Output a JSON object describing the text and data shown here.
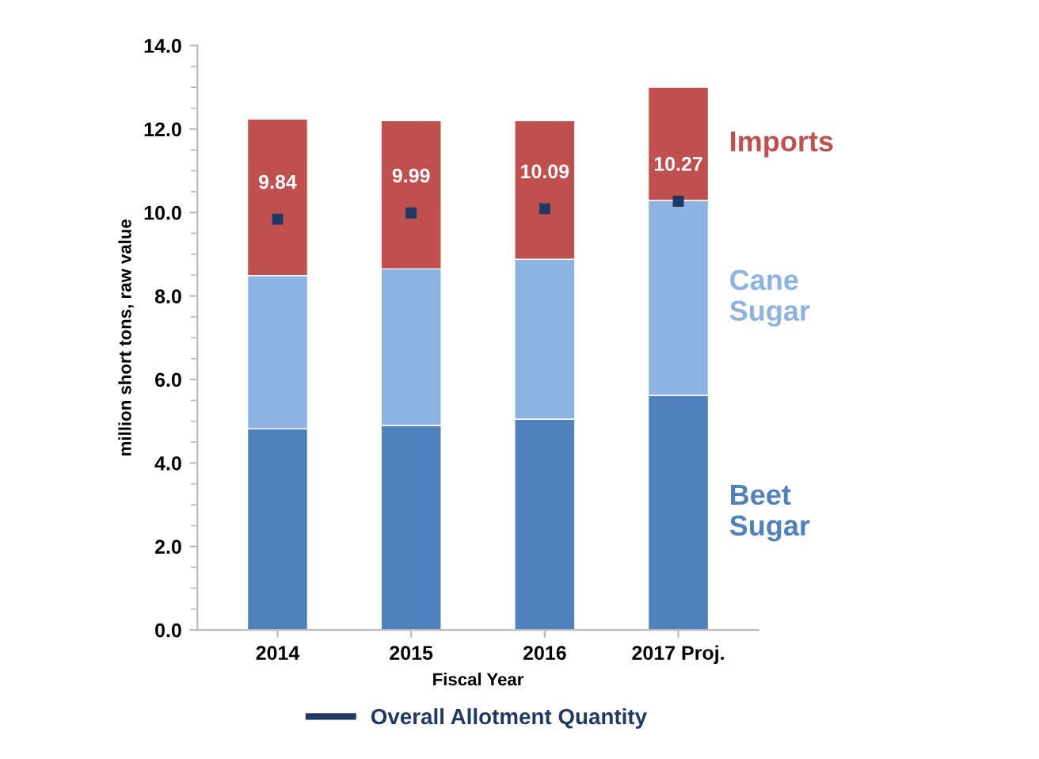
{
  "chart_data": {
    "type": "bar",
    "stacked": true,
    "xlabel": "Fiscal Year",
    "ylabel": "million short tons, raw value",
    "categories": [
      "2014",
      "2015",
      "2016",
      "2017 Proj."
    ],
    "series": [
      {
        "name": "Beet Sugar",
        "color": "#4f81bd",
        "values": [
          4.82,
          4.9,
          5.05,
          5.62
        ]
      },
      {
        "name": "Cane Sugar",
        "color": "#8db3e2",
        "values": [
          3.67,
          3.75,
          3.83,
          4.67
        ]
      },
      {
        "name": "Imports",
        "color": "#c0504d",
        "values": [
          3.75,
          3.55,
          3.32,
          2.71
        ]
      },
      {
        "name": "Overall Allotment Quantity",
        "type": "scatter",
        "color": "#1f3864",
        "values": [
          9.84,
          9.99,
          10.09,
          10.27
        ],
        "value_labels": [
          "9.84",
          "9.99",
          "10.09",
          "10.27"
        ]
      }
    ],
    "ylim": [
      0,
      14
    ],
    "yticks": [
      {
        "value": 0,
        "label": "0.0"
      },
      {
        "value": 2,
        "label": "2.0"
      },
      {
        "value": 4,
        "label": "4.0"
      },
      {
        "value": 6,
        "label": "6.0"
      },
      {
        "value": 8,
        "label": "8.0"
      },
      {
        "value": 10,
        "label": "10.0"
      },
      {
        "value": 12,
        "label": "12.0"
      },
      {
        "value": 14,
        "label": "14.0"
      }
    ],
    "grid": false,
    "legend": "bottom"
  }
}
